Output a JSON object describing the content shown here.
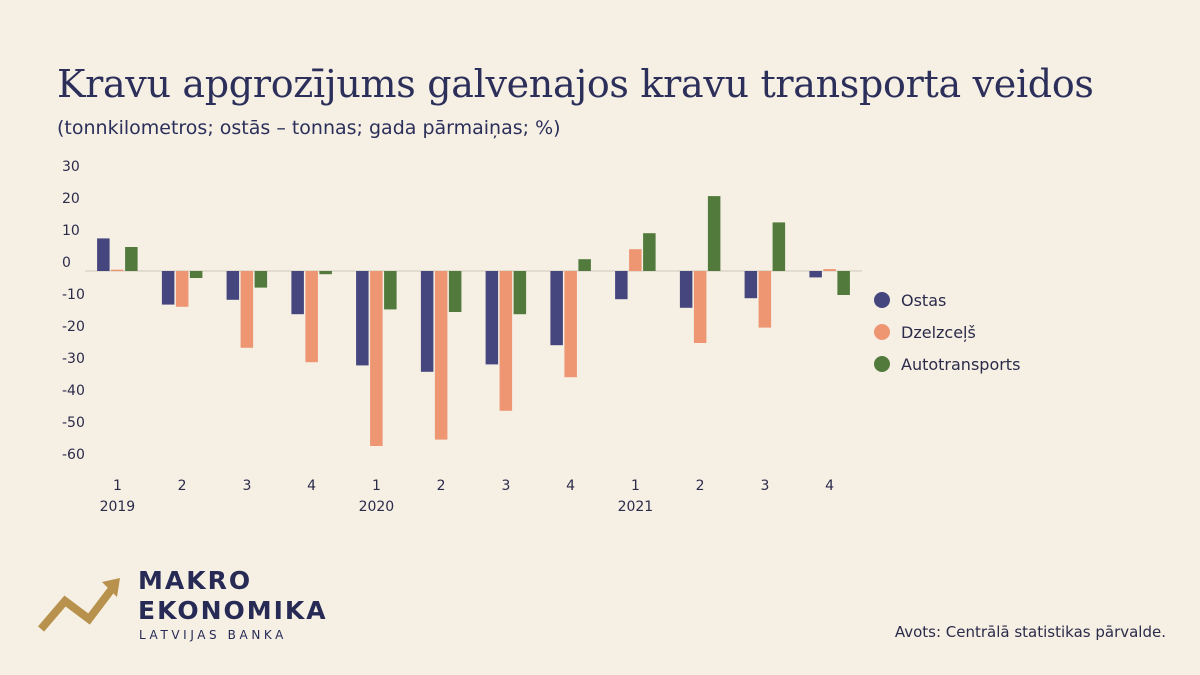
{
  "header": {
    "title": "Kravu apgrozījums galvenajos kravu transporta veidos",
    "subtitle": "(tonnkilometros; ostās – tonnas; gada pārmaiņas; %)"
  },
  "chart_data": {
    "type": "bar",
    "title": "Kravu apgrozījums galvenajos kravu transporta veidos",
    "subtitle": "(tonnkilometros; ostās – tonnas; gada pārmaiņas; %)",
    "categories": [
      "1",
      "2",
      "3",
      "4",
      "1",
      "2",
      "3",
      "4",
      "1",
      "2",
      "3",
      "4"
    ],
    "years": [
      {
        "label": "2019",
        "start_index": 0
      },
      {
        "label": "2020",
        "start_index": 4
      },
      {
        "label": "2021",
        "start_index": 8
      }
    ],
    "series": [
      {
        "name": "Ostas",
        "color": "#45467e",
        "values": [
          10.2,
          -10.5,
          -9.0,
          -13.5,
          -29.5,
          -31.5,
          -29.2,
          -23.2,
          -8.8,
          -11.5,
          -8.5,
          -2.0
        ]
      },
      {
        "name": "Dzelzceļš",
        "color": "#ee9672",
        "values": [
          0.4,
          -11.2,
          -24.0,
          -28.5,
          -54.7,
          -52.7,
          -43.7,
          -33.2,
          6.8,
          -22.5,
          -17.7,
          0.6
        ]
      },
      {
        "name": "Autotransports",
        "color": "#517a3c",
        "values": [
          7.5,
          -2.2,
          -5.2,
          -1.0,
          -12.0,
          -12.8,
          -13.5,
          3.7,
          11.8,
          23.4,
          15.2,
          -7.5
        ]
      }
    ],
    "yticks": [
      30,
      20,
      10,
      0,
      -10,
      -20,
      -30,
      -40,
      -50,
      -60
    ],
    "ylim": [
      -62,
      32
    ],
    "grid": false,
    "legend_position": "right"
  },
  "logo": {
    "line1": "MAKRO",
    "line2": "EKONOMIKA",
    "line3": "LATVIJAS BANKA",
    "color": "#b8924c"
  },
  "footer": {
    "source": "Avots: Centrālā statistikas pārvalde."
  }
}
